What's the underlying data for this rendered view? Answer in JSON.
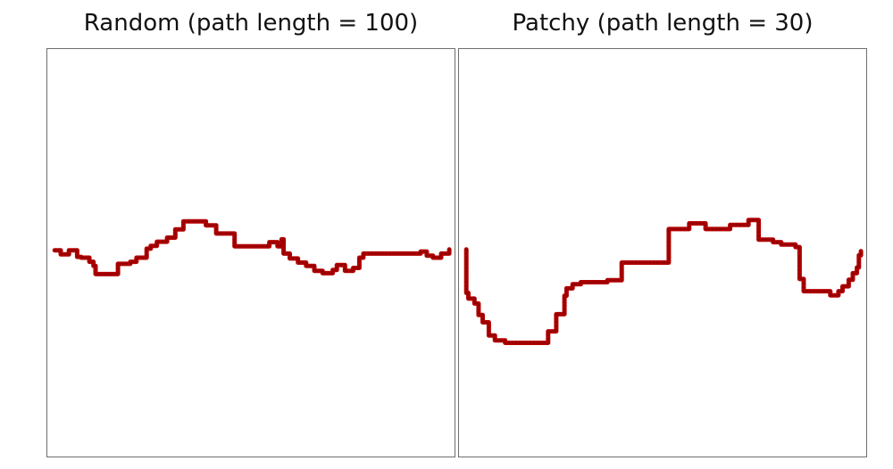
{
  "chart_data": [
    {
      "type": "line",
      "title": "Random (path length = 100)",
      "xlabel": "",
      "ylabel": "",
      "xlim": [
        0,
        100
      ],
      "ylim": [
        0,
        100
      ],
      "grid": false,
      "legend": "none",
      "series": [
        {
          "color": "#b30000",
          "points": [
            [
              2,
              50.6
            ],
            [
              3.5,
              50.6
            ],
            [
              3.5,
              49.6
            ],
            [
              5.5,
              49.6
            ],
            [
              5.5,
              50.6
            ],
            [
              7.5,
              50.6
            ],
            [
              7.5,
              49.0
            ],
            [
              8.5,
              49.0
            ],
            [
              8.5,
              48.8
            ],
            [
              10.5,
              48.8
            ],
            [
              10.5,
              47.8
            ],
            [
              11.5,
              47.8
            ],
            [
              11.5,
              46.8
            ],
            [
              12.0,
              46.8
            ],
            [
              12.0,
              44.8
            ],
            [
              17.5,
              44.8
            ],
            [
              17.5,
              47.3
            ],
            [
              20.5,
              47.3
            ],
            [
              20.5,
              47.8
            ],
            [
              22.0,
              47.8
            ],
            [
              22.0,
              48.8
            ],
            [
              24.5,
              48.8
            ],
            [
              24.5,
              51.0
            ],
            [
              25.5,
              51.0
            ],
            [
              25.5,
              51.7
            ],
            [
              27.0,
              51.7
            ],
            [
              27.0,
              52.7
            ],
            [
              29.5,
              52.7
            ],
            [
              29.5,
              53.7
            ],
            [
              31.5,
              53.7
            ],
            [
              31.5,
              55.7
            ],
            [
              33.5,
              55.7
            ],
            [
              33.5,
              57.7
            ],
            [
              39.0,
              57.7
            ],
            [
              39.0,
              56.7
            ],
            [
              41.5,
              56.7
            ],
            [
              41.5,
              54.7
            ],
            [
              46.0,
              54.7
            ],
            [
              46.0,
              51.6
            ],
            [
              54.5,
              51.6
            ],
            [
              54.5,
              52.6
            ],
            [
              56.5,
              52.6
            ],
            [
              56.5,
              51.6
            ],
            [
              57.5,
              51.6
            ],
            [
              57.5,
              53.3
            ],
            [
              58.0,
              53.3
            ],
            [
              58.0,
              49.8
            ],
            [
              59.5,
              49.8
            ],
            [
              59.5,
              48.6
            ],
            [
              61.5,
              48.6
            ],
            [
              61.5,
              47.6
            ],
            [
              63.5,
              47.6
            ],
            [
              63.5,
              46.8
            ],
            [
              65.5,
              46.8
            ],
            [
              65.5,
              45.6
            ],
            [
              67.5,
              45.6
            ],
            [
              67.5,
              45.0
            ],
            [
              70.0,
              45.0
            ],
            [
              70.0,
              45.8
            ],
            [
              71.0,
              45.8
            ],
            [
              71.0,
              47.0
            ],
            [
              73.0,
              47.0
            ],
            [
              73.0,
              45.6
            ],
            [
              75.0,
              45.6
            ],
            [
              75.0,
              46.3
            ],
            [
              76.5,
              46.3
            ],
            [
              76.5,
              48.8
            ],
            [
              77.5,
              48.8
            ],
            [
              77.5,
              49.8
            ],
            [
              84.0,
              49.8
            ],
            [
              84.0,
              49.8
            ],
            [
              91.5,
              49.8
            ],
            [
              91.5,
              50.3
            ],
            [
              93.0,
              50.3
            ],
            [
              93.0,
              49.3
            ],
            [
              94.5,
              49.3
            ],
            [
              94.5,
              48.8
            ],
            [
              96.5,
              48.8
            ],
            [
              96.5,
              49.8
            ],
            [
              98.5,
              49.8
            ],
            [
              98.5,
              50.8
            ]
          ]
        }
      ]
    },
    {
      "type": "line",
      "title": "Patchy (path length = 30)",
      "xlabel": "",
      "ylabel": "",
      "xlim": [
        0,
        100
      ],
      "ylim": [
        0,
        100
      ],
      "grid": false,
      "legend": "none",
      "series": [
        {
          "color": "#b30000",
          "points": [
            [
              2,
              50.8
            ],
            [
              2,
              40.2
            ],
            [
              2.5,
              40.2
            ],
            [
              2.5,
              38.8
            ],
            [
              4.0,
              38.8
            ],
            [
              4.0,
              37.6
            ],
            [
              5.0,
              37.6
            ],
            [
              5.0,
              34.8
            ],
            [
              6.0,
              34.8
            ],
            [
              6.0,
              33.0
            ],
            [
              7.5,
              33.0
            ],
            [
              7.5,
              29.8
            ],
            [
              9.0,
              29.8
            ],
            [
              9.0,
              28.6
            ],
            [
              11.5,
              28.6
            ],
            [
              11.5,
              28.0
            ],
            [
              22.0,
              28.0
            ],
            [
              22.0,
              30.8
            ],
            [
              24.0,
              30.8
            ],
            [
              24.0,
              35.0
            ],
            [
              26.0,
              35.0
            ],
            [
              26.0,
              39.5
            ],
            [
              26.5,
              39.5
            ],
            [
              26.5,
              41.3
            ],
            [
              28.0,
              41.3
            ],
            [
              28.0,
              42.3
            ],
            [
              30.0,
              42.3
            ],
            [
              30.0,
              42.8
            ],
            [
              36.5,
              42.8
            ],
            [
              36.5,
              43.3
            ],
            [
              40.0,
              43.3
            ],
            [
              40.0,
              47.6
            ],
            [
              51.5,
              47.6
            ],
            [
              51.5,
              55.8
            ],
            [
              56.5,
              55.8
            ],
            [
              56.5,
              57.2
            ],
            [
              60.5,
              57.2
            ],
            [
              60.5,
              55.8
            ],
            [
              66.5,
              55.8
            ],
            [
              66.5,
              56.8
            ],
            [
              71.0,
              56.8
            ],
            [
              71.0,
              58.0
            ],
            [
              73.5,
              58.0
            ],
            [
              73.5,
              53.2
            ],
            [
              77.0,
              53.2
            ],
            [
              77.0,
              52.6
            ],
            [
              79.0,
              52.6
            ],
            [
              79.0,
              52.0
            ],
            [
              82.5,
              52.0
            ],
            [
              82.5,
              51.4
            ],
            [
              83.5,
              51.4
            ],
            [
              83.5,
              43.6
            ],
            [
              84.5,
              43.6
            ],
            [
              84.5,
              40.6
            ],
            [
              91.0,
              40.6
            ],
            [
              91.0,
              39.6
            ],
            [
              93.0,
              39.6
            ],
            [
              93.0,
              40.6
            ],
            [
              94.0,
              40.6
            ],
            [
              94.0,
              41.8
            ],
            [
              95.5,
              41.8
            ],
            [
              95.5,
              43.4
            ],
            [
              96.5,
              43.4
            ],
            [
              96.5,
              45.0
            ],
            [
              97.5,
              45.0
            ],
            [
              97.5,
              46.4
            ],
            [
              98.0,
              46.4
            ],
            [
              98.0,
              49.4
            ],
            [
              98.5,
              49.4
            ],
            [
              98.5,
              50.4
            ]
          ]
        }
      ]
    }
  ]
}
